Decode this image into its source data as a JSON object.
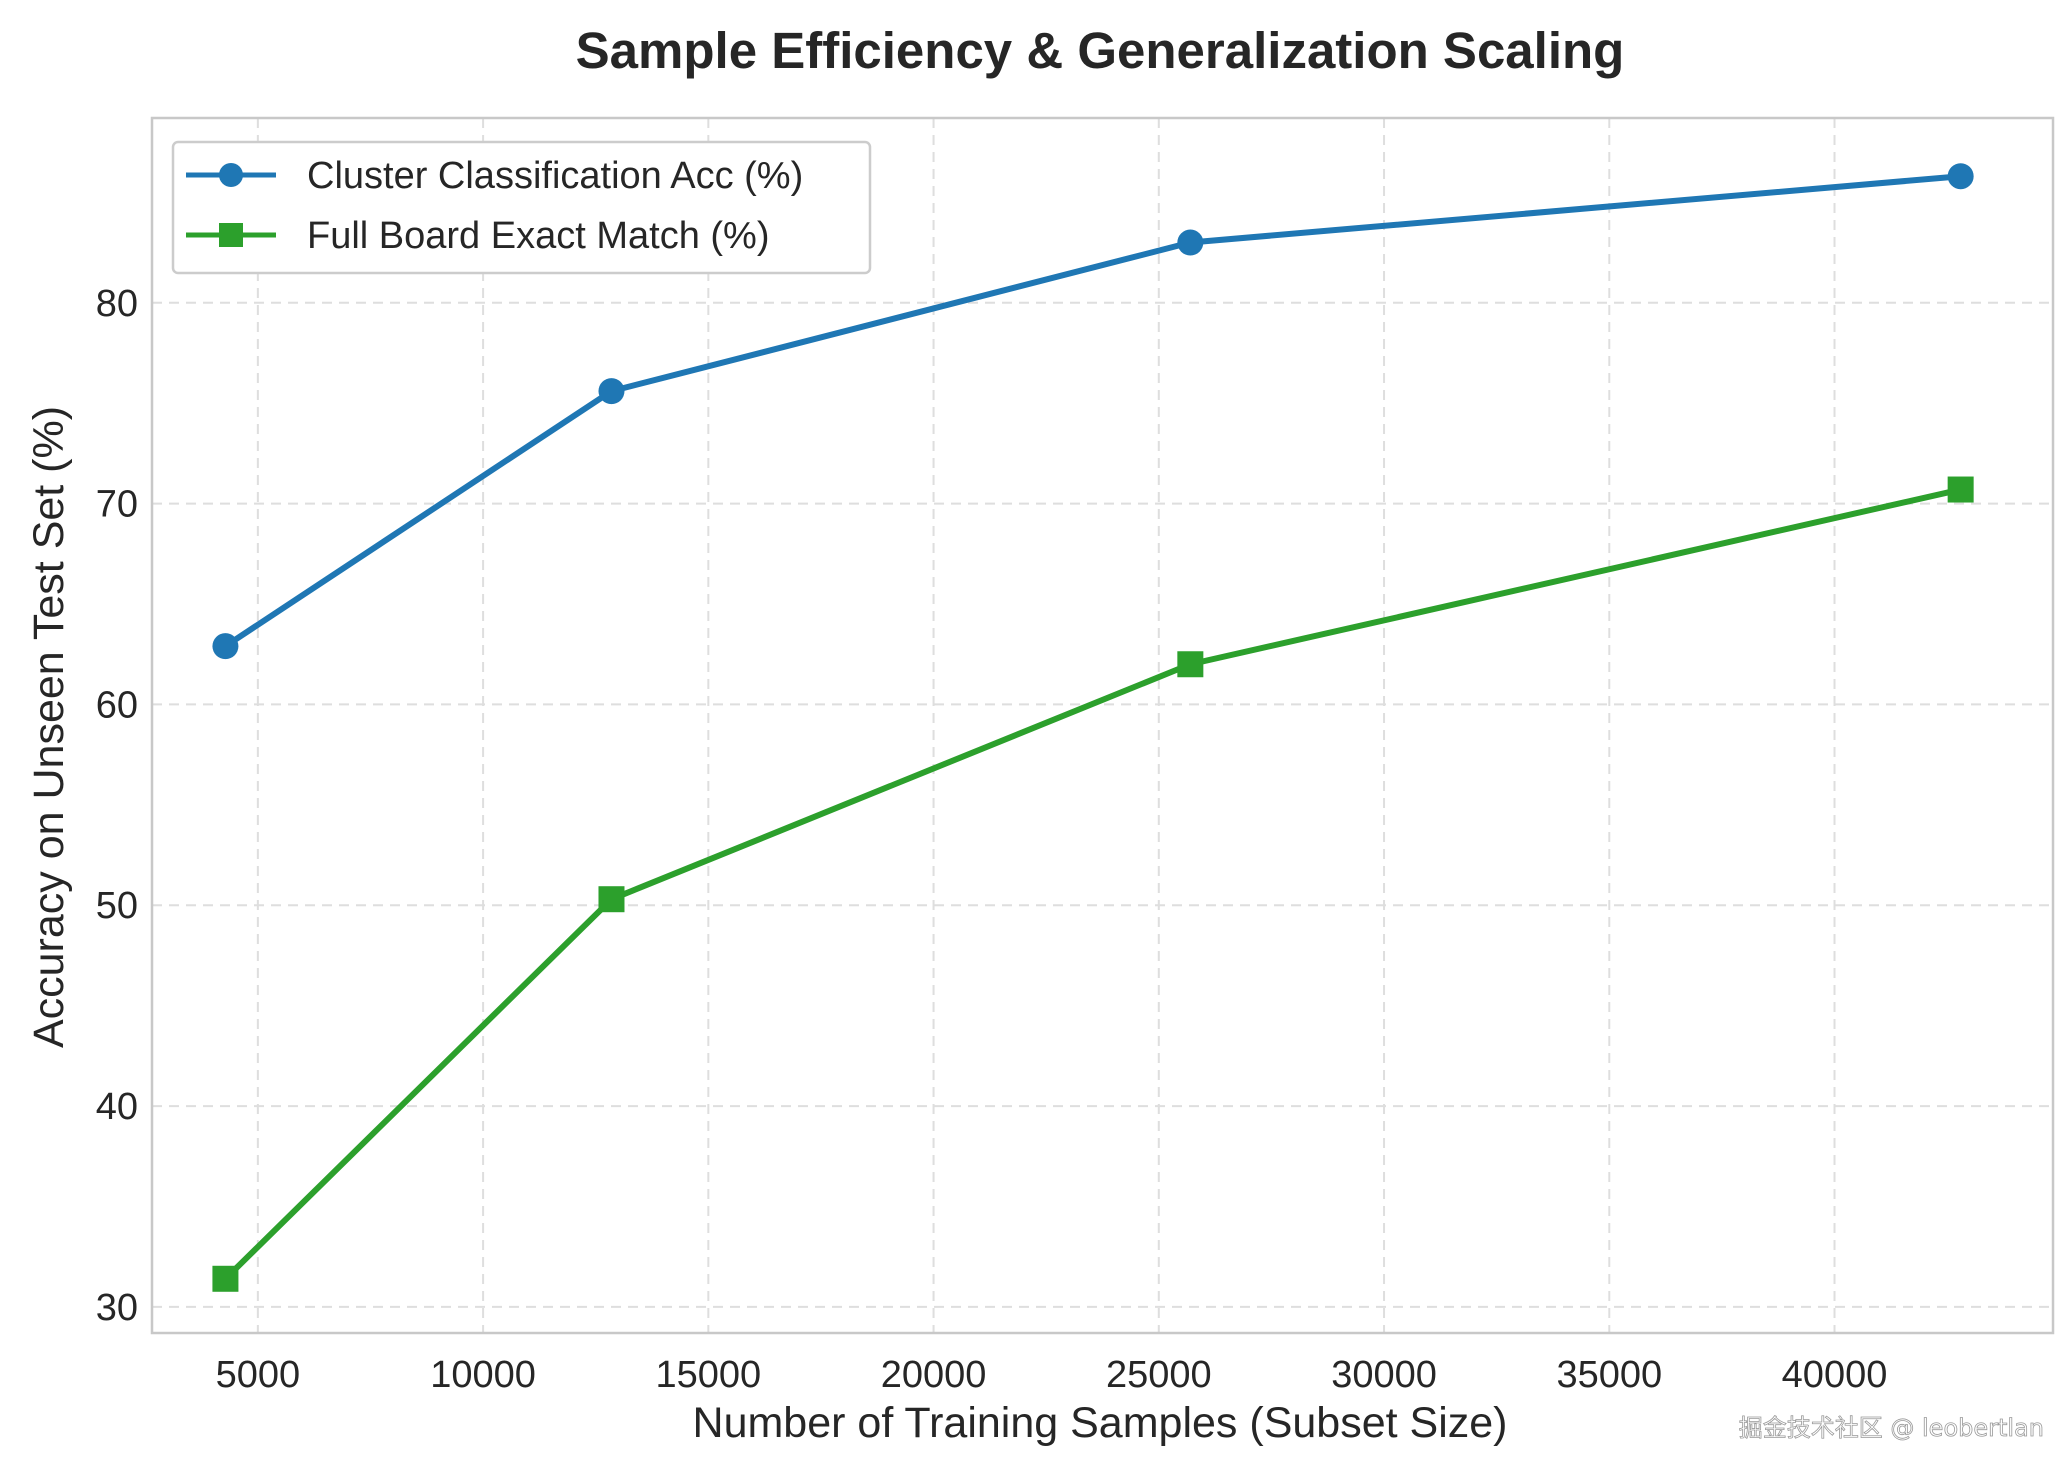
{
  "chart_data": {
    "type": "line",
    "title": "Sample Efficiency & Generalization Scaling",
    "xlabel": "Number of Training Samples (Subset Size)",
    "ylabel": "Accuracy on Unseen Test Set (%)",
    "xlim": [
      2650,
      44850
    ],
    "ylim": [
      28.7,
      89.2
    ],
    "xticks": [
      5000,
      10000,
      15000,
      20000,
      25000,
      30000,
      35000,
      40000
    ],
    "yticks": [
      30,
      40,
      50,
      60,
      70,
      80
    ],
    "grid": true,
    "legend_position": "top-left",
    "series": [
      {
        "name": "Cluster Classification Acc (%)",
        "color": "#1f77b4",
        "marker": "circle",
        "x": [
          4280,
          12850,
          25700,
          42800
        ],
        "y": [
          62.9,
          75.6,
          83.0,
          86.3
        ]
      },
      {
        "name": "Full Board Exact Match (%)",
        "color": "#2ca02c",
        "marker": "square",
        "x": [
          4280,
          12850,
          25700,
          42800
        ],
        "y": [
          31.4,
          50.3,
          62.0,
          70.7
        ]
      }
    ]
  },
  "watermark": "掘金技术社区 @ leobertlan"
}
